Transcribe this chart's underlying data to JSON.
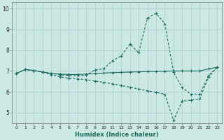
{
  "xlabel": "Humidex (Indice chaleur)",
  "bg_color": "#cce8e4",
  "grid_color": "#aacfcc",
  "line_color": "#1a6b5a",
  "xlim": [
    -0.5,
    23.5
  ],
  "ylim": [
    4.5,
    10.3
  ],
  "xticks": [
    0,
    1,
    2,
    3,
    4,
    5,
    6,
    7,
    8,
    9,
    10,
    11,
    12,
    13,
    14,
    15,
    16,
    17,
    18,
    19,
    20,
    21,
    22,
    23
  ],
  "yticks": [
    5,
    6,
    7,
    8,
    9,
    10
  ],
  "series1_x": [
    0,
    1,
    2,
    3,
    4,
    5,
    6,
    7,
    8,
    9,
    10,
    11,
    12,
    13,
    14,
    15,
    16,
    17,
    18,
    19,
    20,
    21,
    22,
    23
  ],
  "series1_y": [
    6.88,
    7.07,
    7.02,
    6.95,
    6.88,
    6.82,
    6.78,
    6.78,
    6.8,
    7.05,
    7.1,
    7.5,
    7.72,
    8.3,
    7.88,
    9.55,
    9.78,
    9.28,
    6.93,
    6.2,
    5.88,
    5.88,
    6.78,
    7.18
  ],
  "series2_x": [
    0,
    1,
    2,
    3,
    4,
    5,
    6,
    7,
    8,
    9,
    10,
    11,
    12,
    13,
    14,
    15,
    16,
    17,
    18,
    19,
    20,
    21,
    22,
    23
  ],
  "series2_y": [
    6.88,
    7.07,
    7.02,
    6.95,
    6.82,
    6.72,
    6.65,
    6.62,
    6.58,
    6.52,
    6.45,
    6.38,
    6.3,
    6.22,
    6.13,
    6.05,
    5.97,
    5.88,
    4.62,
    5.55,
    5.6,
    5.65,
    6.72,
    7.18
  ],
  "series3_x": [
    0,
    1,
    2,
    3,
    4,
    5,
    6,
    7,
    8,
    9,
    10,
    11,
    12,
    13,
    14,
    15,
    16,
    17,
    18,
    19,
    20,
    21,
    22,
    23
  ],
  "series3_y": [
    6.88,
    7.07,
    7.02,
    6.95,
    6.88,
    6.85,
    6.83,
    6.83,
    6.85,
    6.87,
    6.9,
    6.92,
    6.93,
    6.95,
    6.96,
    6.97,
    6.98,
    6.99,
    7.0,
    7.0,
    7.0,
    7.0,
    7.1,
    7.18
  ]
}
